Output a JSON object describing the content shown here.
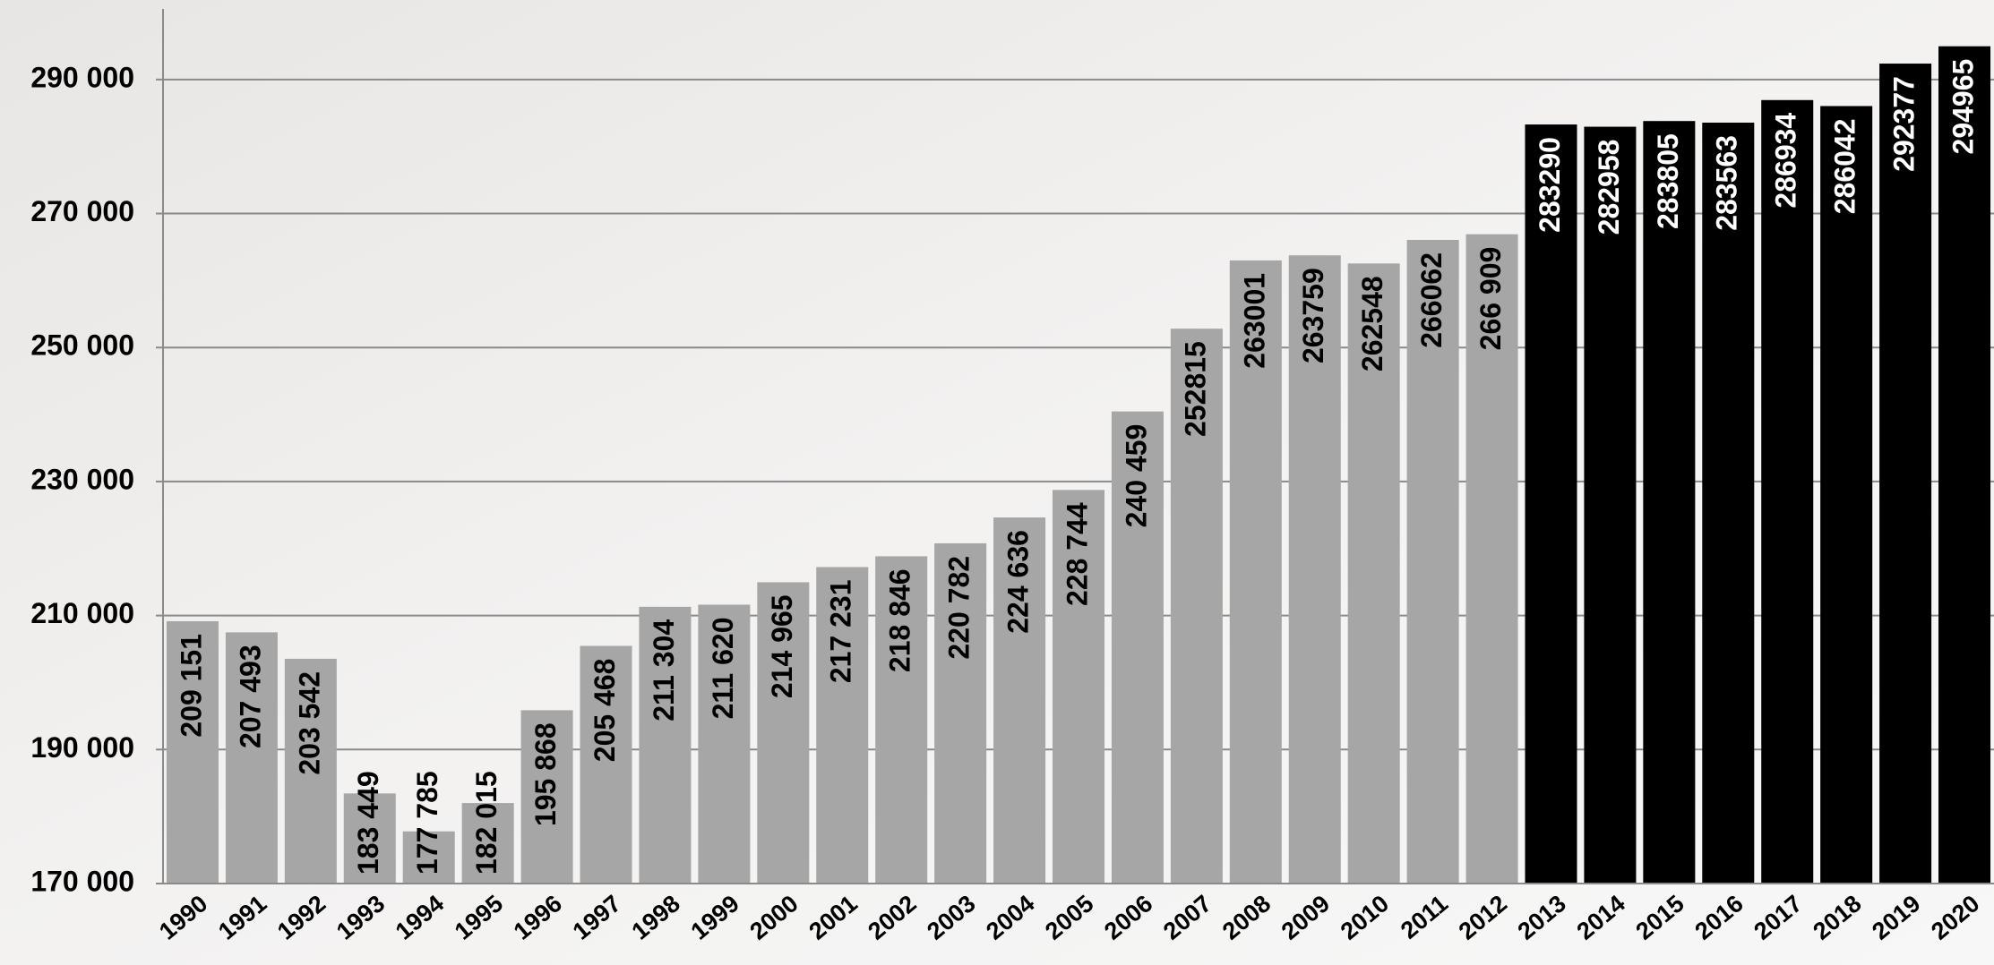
{
  "chart_data": {
    "type": "bar",
    "categories": [
      "1990",
      "1991",
      "1992",
      "1993",
      "1994",
      "1995",
      "1996",
      "1997",
      "1998",
      "1999",
      "2000",
      "2001",
      "2002",
      "2003",
      "2004",
      "2005",
      "2006",
      "2007",
      "2008",
      "2009",
      "2010",
      "2011",
      "2012",
      "2013",
      "2014",
      "2015",
      "2016",
      "2017",
      "2018",
      "2019",
      "2020"
    ],
    "values": [
      209151,
      207493,
      203542,
      183449,
      177785,
      182015,
      195868,
      205468,
      211304,
      211620,
      214965,
      217231,
      218846,
      220782,
      224636,
      228744,
      240459,
      252815,
      263001,
      263759,
      262548,
      266062,
      266909,
      283290,
      282958,
      283805,
      283563,
      286934,
      286042,
      292377,
      294965
    ],
    "value_labels": [
      "209 151",
      "207 493",
      "203 542",
      "183 449",
      "177 785",
      "182 015",
      "195 868",
      "205 468",
      "211 304",
      "211 620",
      "214 965",
      "217 231",
      "218 846",
      "220 782",
      "224 636",
      "228 744",
      "240 459",
      "252815",
      "263001",
      "263759",
      "262548",
      "266062",
      "266 909",
      "283290",
      "282958",
      "283805",
      "283563",
      "286934",
      "286042",
      "292377",
      "294965"
    ],
    "colors": [
      "#a6a6a6",
      "#a6a6a6",
      "#a6a6a6",
      "#a6a6a6",
      "#a6a6a6",
      "#a6a6a6",
      "#a6a6a6",
      "#a6a6a6",
      "#a6a6a6",
      "#a6a6a6",
      "#a6a6a6",
      "#a6a6a6",
      "#a6a6a6",
      "#a6a6a6",
      "#a6a6a6",
      "#a6a6a6",
      "#a6a6a6",
      "#a6a6a6",
      "#a6a6a6",
      "#a6a6a6",
      "#a6a6a6",
      "#a6a6a6",
      "#a6a6a6",
      "#000000",
      "#000000",
      "#000000",
      "#000000",
      "#000000",
      "#000000",
      "#000000",
      "#000000"
    ],
    "ylim": [
      170000,
      300000
    ],
    "yticks": [
      {
        "value": 170000,
        "label": "170 000"
      },
      {
        "value": 190000,
        "label": "190 000"
      },
      {
        "value": 210000,
        "label": "210 000"
      },
      {
        "value": 230000,
        "label": "230 000"
      },
      {
        "value": 250000,
        "label": "250 000"
      },
      {
        "value": 270000,
        "label": "270 000"
      },
      {
        "value": 290000,
        "label": "290 000"
      }
    ],
    "grid": true
  }
}
